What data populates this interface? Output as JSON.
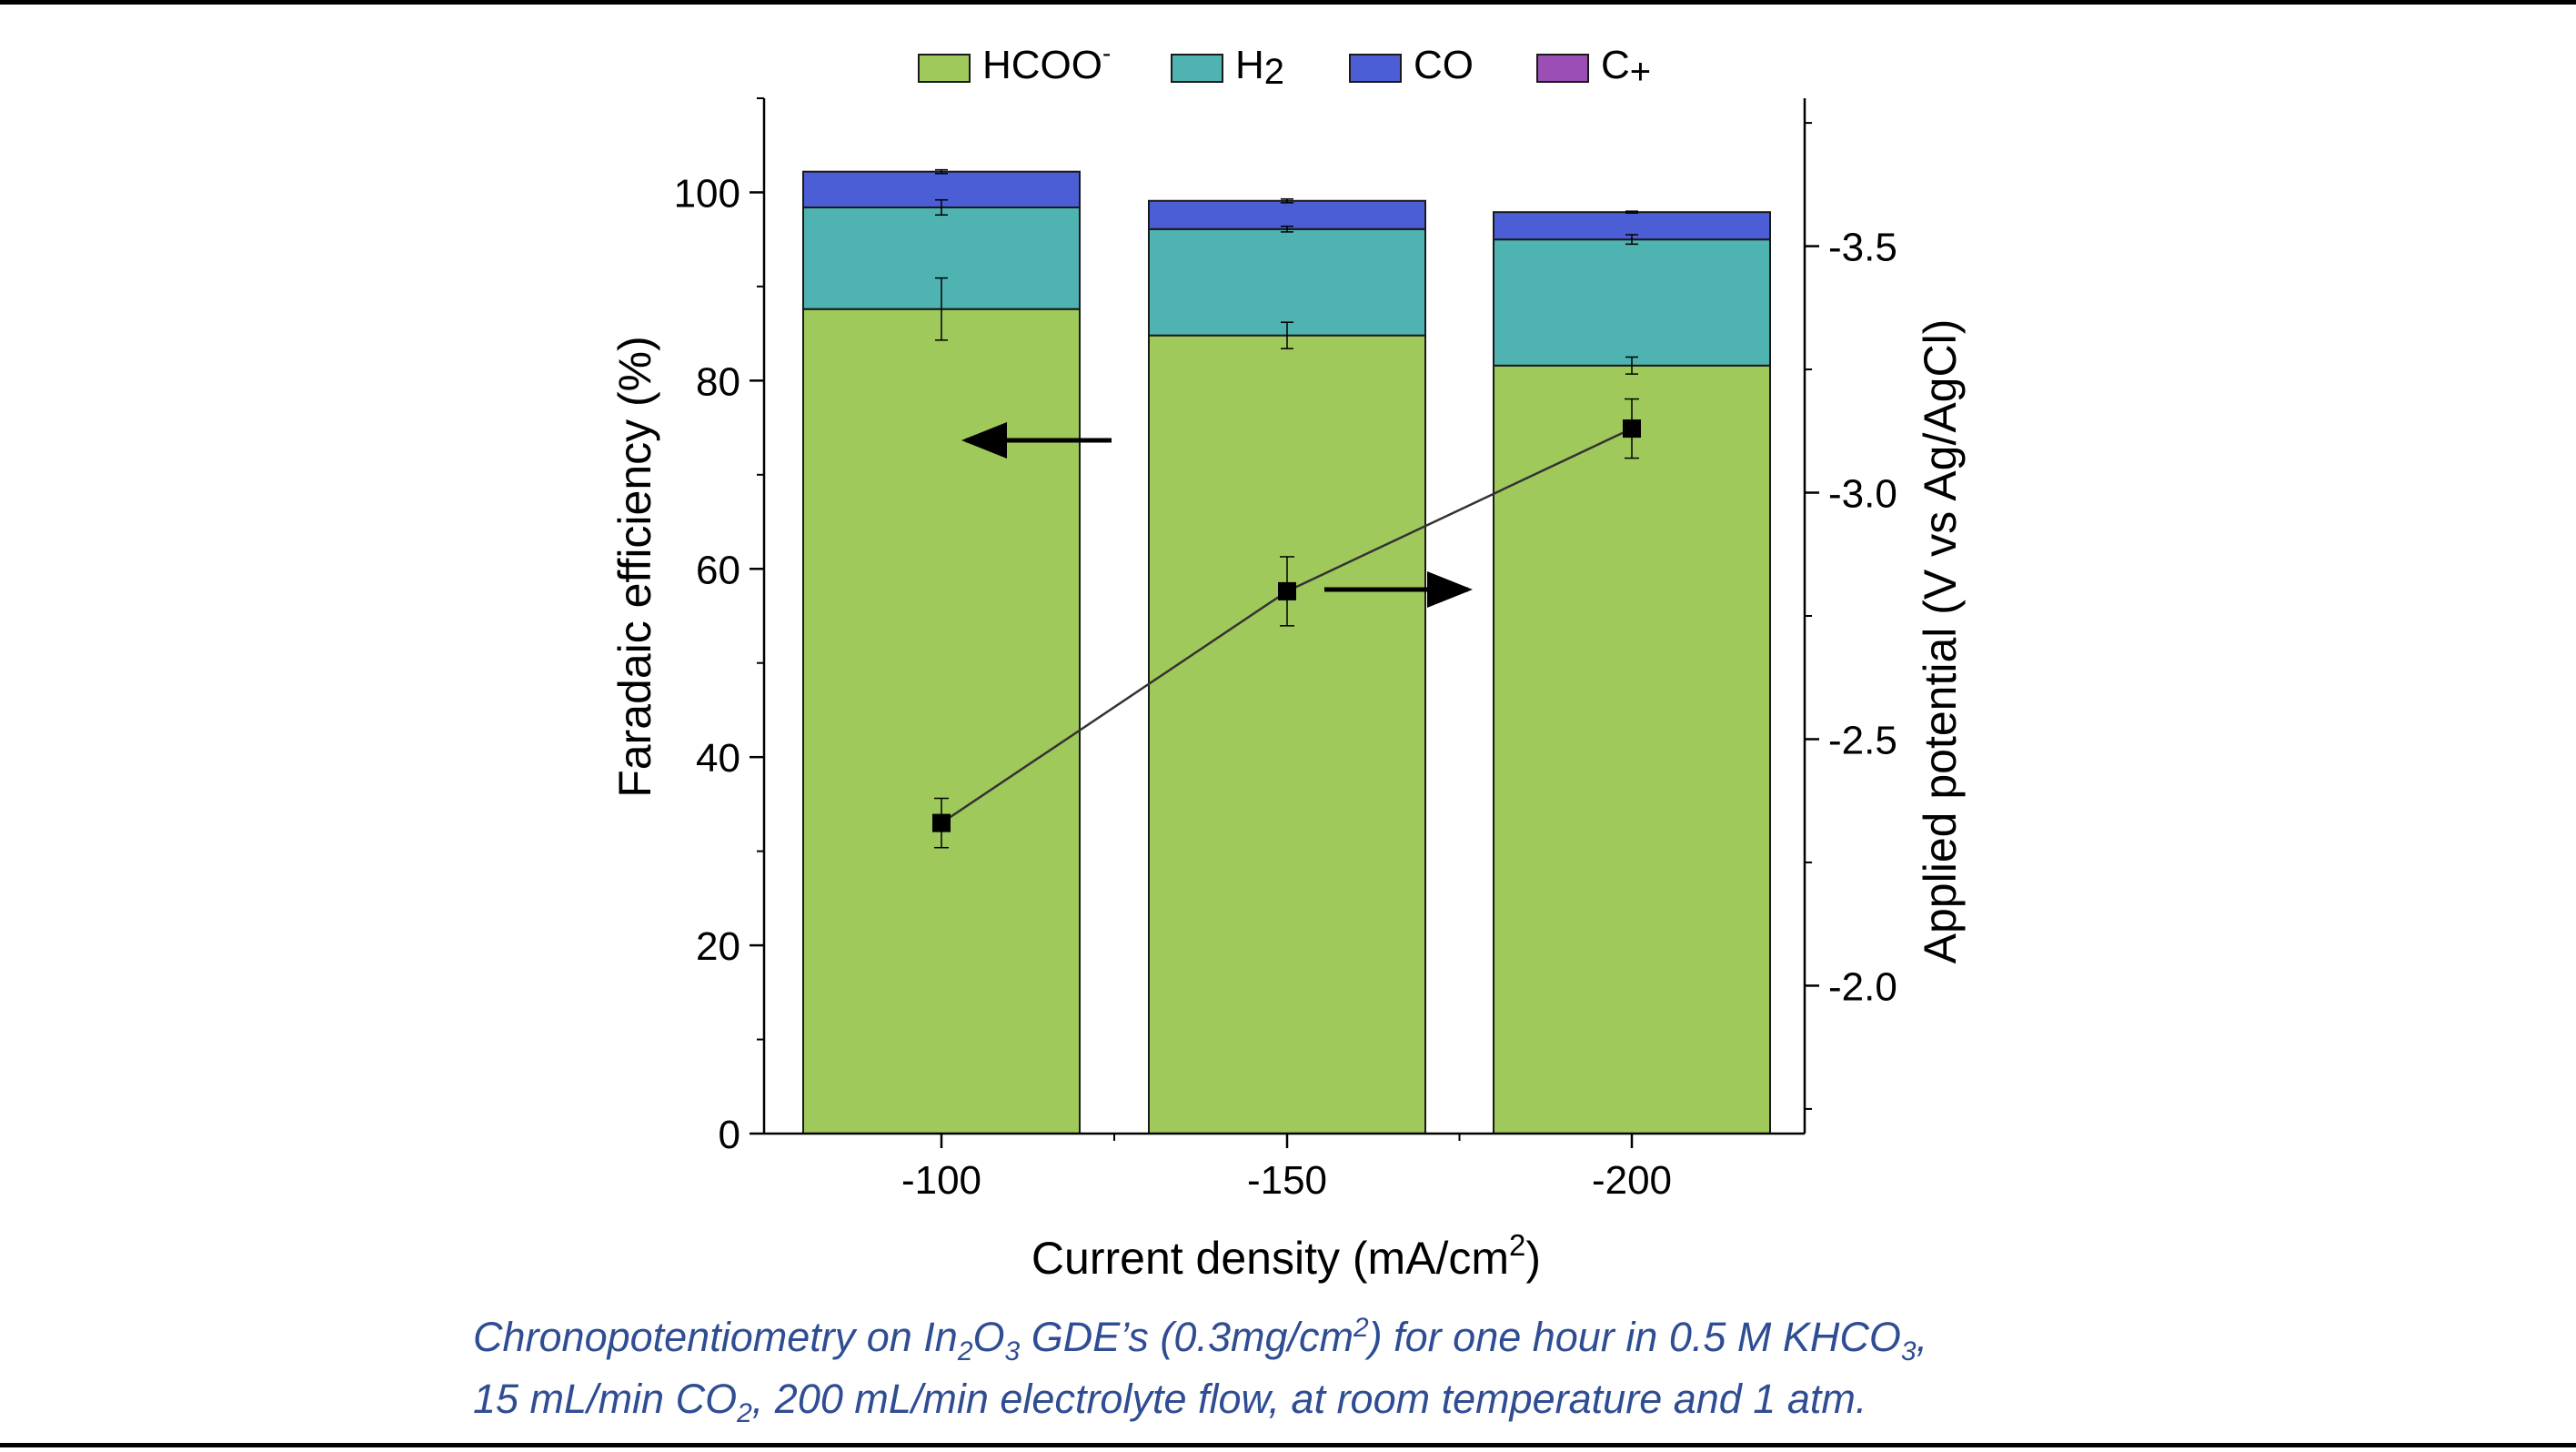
{
  "chart_data": {
    "type": "bar",
    "stacked": true,
    "categories": [
      "-100",
      "-150",
      "-200"
    ],
    "xlabel": "Current density (mA/cm2)",
    "ylabel": "Faradaic efficiency (%)",
    "ylim": [
      0,
      110
    ],
    "yticks": [
      0,
      20,
      40,
      60,
      80,
      100
    ],
    "y2label": "Applied potential (V vs Ag/AgCl)",
    "y2lim": [
      -1.7,
      -3.8
    ],
    "y2ticks": [
      -2.0,
      -2.5,
      -3.0,
      -3.5
    ],
    "legend_position": "top",
    "series": [
      {
        "name": "HCOO-",
        "display": "HCOO",
        "sup": "-",
        "color": "#9fc95b",
        "values": [
          87.6,
          84.8,
          81.6
        ],
        "errors": [
          3.3,
          1.4,
          0.9
        ]
      },
      {
        "name": "H2",
        "display": "H",
        "sub": "2",
        "color": "#4eb3b1",
        "values": [
          10.8,
          11.3,
          13.4
        ],
        "errors": [
          0.8,
          0.3,
          0.5
        ]
      },
      {
        "name": "CO",
        "display": "CO",
        "color": "#4b5ed6",
        "values": [
          3.8,
          3.0,
          2.9
        ],
        "errors": [
          0.2,
          0.2,
          0.1
        ]
      },
      {
        "name": "C+",
        "display": "C",
        "sub": "+",
        "color": "#9b4fb5",
        "values": [
          0.0,
          0.0,
          0.0
        ],
        "errors": [
          0,
          0,
          0
        ]
      }
    ],
    "potential_series": {
      "values": [
        -2.33,
        -2.8,
        -3.13
      ],
      "errors": [
        0.05,
        0.07,
        0.06
      ]
    }
  },
  "axis_text": {
    "xlabel_main": "Current density (mA/cm",
    "xlabel_sup": "2",
    "xlabel_close": ")"
  },
  "caption": {
    "line1_a": "Chronopotentiometry on In",
    "line1_b": "2",
    "line1_c": "O",
    "line1_d": "3",
    "line1_e": " GDE’s (0.3mg/cm",
    "line1_f": "2",
    "line1_g": ") for one hour in 0.5 M KHCO",
    "line1_h": "3",
    "line1_i": ",",
    "line2_a": "15 mL/min CO",
    "line2_b": "2",
    "line2_c": ", 200 mL/min electrolyte flow, at room temperature and 1 atm."
  }
}
